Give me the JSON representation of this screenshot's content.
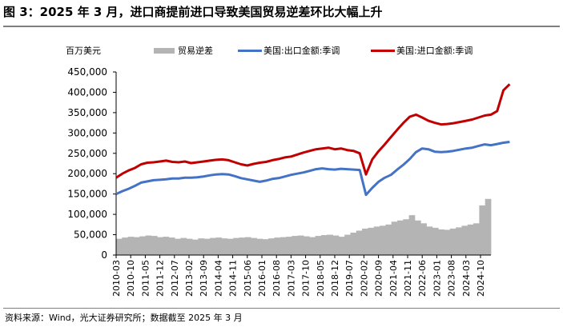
{
  "header": {
    "title": "图 3：2025 年 3 月，进口商提前进口导致美国贸易逆差环比大幅上升"
  },
  "footer": {
    "source": "资料来源：Wind，光大证券研究所；数据截至 2025 年 3 月"
  },
  "colors": {
    "deficit": "#b4b4b4",
    "exports": "#4472c4",
    "imports": "#c00000",
    "axis": "#000000",
    "rule": "#7f7f7f"
  },
  "chart_data": {
    "type": "line",
    "title": "图 3：2025 年 3 月，进口商提前进口导致美国贸易逆差环比大幅上升",
    "ylabel": "百万美元",
    "xlabel": "",
    "ylim": [
      0,
      450000
    ],
    "yticks": [
      0,
      50000,
      100000,
      150000,
      200000,
      250000,
      300000,
      350000,
      400000,
      450000
    ],
    "ytick_labels": [
      "0",
      "50,000",
      "100,000",
      "150,000",
      "200,000",
      "250,000",
      "300,000",
      "350,000",
      "400,000",
      "450,000"
    ],
    "xtick_labels": [
      "2010-03",
      "2010-10",
      "2011-05",
      "2011-12",
      "2012-07",
      "2013-02",
      "2013-09",
      "2014-04",
      "2014-11",
      "2015-06",
      "2016-01",
      "2016-08",
      "2017-03",
      "2017-10",
      "2018-05",
      "2018-12",
      "2019-07",
      "2020-02",
      "2020-09",
      "2021-04",
      "2021-11",
      "2022-06",
      "2023-01",
      "2023-08",
      "2024-03",
      "2024-10"
    ],
    "x_start": "2010-03",
    "x_end": "2025-03",
    "x_step_months": 3,
    "grid": false,
    "legend_position": "top",
    "legend": [
      "贸易逆差",
      "美国:出口金额:季调",
      "美国:进口金额:季调"
    ],
    "series": [
      {
        "name": "贸易逆差",
        "kind": "bar",
        "color": "#b4b4b4",
        "values": [
          40000,
          43000,
          45000,
          44000,
          46000,
          48000,
          47000,
          44000,
          45000,
          43000,
          40000,
          42000,
          40000,
          38000,
          41000,
          40000,
          42000,
          43000,
          41000,
          40000,
          42000,
          43000,
          44000,
          42000,
          40000,
          39000,
          41000,
          43000,
          44000,
          45000,
          47000,
          48000,
          46000,
          44000,
          47000,
          49000,
          50000,
          48000,
          45000,
          50000,
          55000,
          60000,
          65000,
          67000,
          70000,
          72000,
          75000,
          82000,
          85000,
          88000,
          98000,
          85000,
          78000,
          70000,
          67000,
          63000,
          62000,
          65000,
          68000,
          72000,
          75000,
          78000,
          122000,
          138000
        ]
      },
      {
        "name": "美国:出口金额:季调",
        "kind": "line",
        "color": "#4472c4",
        "values": [
          150000,
          157000,
          163000,
          170000,
          178000,
          181000,
          184000,
          185000,
          186000,
          188000,
          188000,
          190000,
          190000,
          191000,
          193000,
          196000,
          198000,
          199000,
          198000,
          194000,
          189000,
          186000,
          183000,
          180000,
          183000,
          187000,
          189000,
          193000,
          197000,
          200000,
          203000,
          207000,
          211000,
          213000,
          211000,
          210000,
          212000,
          211000,
          210000,
          209000,
          148000,
          165000,
          180000,
          190000,
          197000,
          210000,
          222000,
          236000,
          253000,
          262000,
          260000,
          254000,
          253000,
          254000,
          256000,
          259000,
          262000,
          264000,
          268000,
          272000,
          270000,
          273000,
          276000,
          278000
        ]
      },
      {
        "name": "美国:进口金额:季调",
        "kind": "line",
        "color": "#c00000",
        "values": [
          190000,
          200000,
          208000,
          214000,
          223000,
          227000,
          228000,
          230000,
          232000,
          229000,
          228000,
          230000,
          226000,
          228000,
          230000,
          232000,
          234000,
          235000,
          233000,
          228000,
          223000,
          220000,
          224000,
          227000,
          229000,
          233000,
          236000,
          240000,
          242000,
          247000,
          252000,
          256000,
          260000,
          262000,
          264000,
          260000,
          262000,
          258000,
          256000,
          250000,
          198000,
          235000,
          255000,
          272000,
          290000,
          308000,
          325000,
          340000,
          345000,
          338000,
          330000,
          325000,
          321000,
          322000,
          324000,
          327000,
          330000,
          333000,
          338000,
          343000,
          345000,
          354000,
          405000,
          420000
        ]
      }
    ]
  }
}
